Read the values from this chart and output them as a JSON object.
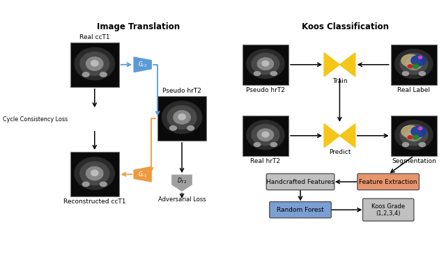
{
  "title_left": "Image Translation",
  "title_right": "Koos Classification",
  "bg_color": "#ffffff",
  "left_section": {
    "real_cct1_label": "Real ccT1",
    "recon_label": "Reconstructed ccT1",
    "cycle_loss_label": "Cycle Consistency Loss",
    "pseudo_label": "Pseudo hrT2",
    "adversarial_label": "Adversarial Loss",
    "g_t2_label": "$G_{r2}$",
    "g_t1_label": "$G_{r1}$",
    "d_t2_label": "$D_{T2}$",
    "blue_color": "#5B9BD5",
    "orange_color": "#ED9B40",
    "gray_color": "#A0A0A0"
  },
  "right_section": {
    "pseudo_hrt2_label": "Pseudo hrT2",
    "real_hrt2_label": "Real hrT2",
    "real_label_label": "Real Label",
    "segmentation_label": "Segmentation",
    "train_label": "Train",
    "predict_label": "Predict",
    "handcrafted_label": "Handcrafted Features",
    "feature_extract_label": "Feature Extraction",
    "random_forest_label": "Random Forest",
    "koos_grade_label": "Koos Grade\n(1,2,3,4)",
    "bow_color": "#F5C518",
    "orange_box_color": "#E8956D",
    "blue_box_color": "#7B9FD4",
    "gray_box_color": "#C0C0C0"
  }
}
